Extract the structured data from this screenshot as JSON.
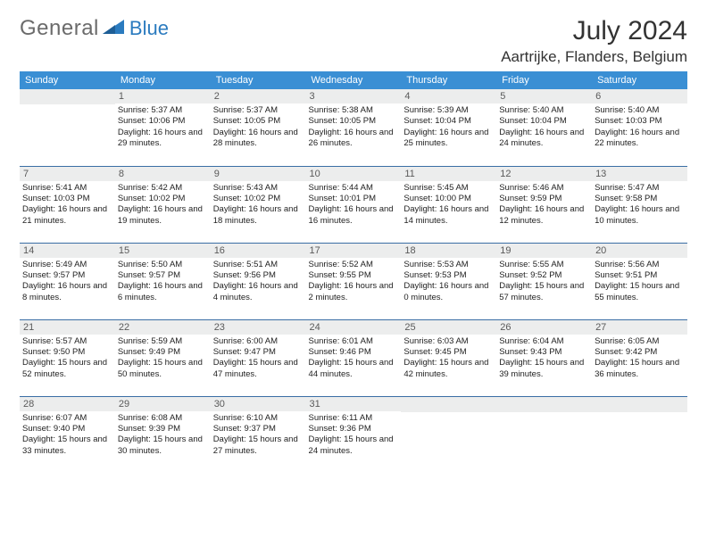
{
  "brand": {
    "text1": "General",
    "text2": "Blue",
    "accent_color": "#2b7bbf",
    "gray_color": "#6b6b6b"
  },
  "title": "July 2024",
  "location": "Aartrijke, Flanders, Belgium",
  "colors": {
    "header_bg": "#3a8fd4",
    "header_fg": "#ffffff",
    "daynum_bg": "#eceded",
    "daynum_fg": "#5a5a5a",
    "row_border": "#3a6ea5",
    "page_bg": "#ffffff"
  },
  "typography": {
    "title_fontsize": 30,
    "location_fontsize": 17,
    "weekday_fontsize": 11,
    "daynum_fontsize": 11,
    "cell_fontsize": 9.5
  },
  "weekdays": [
    "Sunday",
    "Monday",
    "Tuesday",
    "Wednesday",
    "Thursday",
    "Friday",
    "Saturday"
  ],
  "weeks": [
    [
      {
        "n": "",
        "sunrise": "",
        "sunset": "",
        "daylight": ""
      },
      {
        "n": "1",
        "sunrise": "Sunrise: 5:37 AM",
        "sunset": "Sunset: 10:06 PM",
        "daylight": "Daylight: 16 hours and 29 minutes."
      },
      {
        "n": "2",
        "sunrise": "Sunrise: 5:37 AM",
        "sunset": "Sunset: 10:05 PM",
        "daylight": "Daylight: 16 hours and 28 minutes."
      },
      {
        "n": "3",
        "sunrise": "Sunrise: 5:38 AM",
        "sunset": "Sunset: 10:05 PM",
        "daylight": "Daylight: 16 hours and 26 minutes."
      },
      {
        "n": "4",
        "sunrise": "Sunrise: 5:39 AM",
        "sunset": "Sunset: 10:04 PM",
        "daylight": "Daylight: 16 hours and 25 minutes."
      },
      {
        "n": "5",
        "sunrise": "Sunrise: 5:40 AM",
        "sunset": "Sunset: 10:04 PM",
        "daylight": "Daylight: 16 hours and 24 minutes."
      },
      {
        "n": "6",
        "sunrise": "Sunrise: 5:40 AM",
        "sunset": "Sunset: 10:03 PM",
        "daylight": "Daylight: 16 hours and 22 minutes."
      }
    ],
    [
      {
        "n": "7",
        "sunrise": "Sunrise: 5:41 AM",
        "sunset": "Sunset: 10:03 PM",
        "daylight": "Daylight: 16 hours and 21 minutes."
      },
      {
        "n": "8",
        "sunrise": "Sunrise: 5:42 AM",
        "sunset": "Sunset: 10:02 PM",
        "daylight": "Daylight: 16 hours and 19 minutes."
      },
      {
        "n": "9",
        "sunrise": "Sunrise: 5:43 AM",
        "sunset": "Sunset: 10:02 PM",
        "daylight": "Daylight: 16 hours and 18 minutes."
      },
      {
        "n": "10",
        "sunrise": "Sunrise: 5:44 AM",
        "sunset": "Sunset: 10:01 PM",
        "daylight": "Daylight: 16 hours and 16 minutes."
      },
      {
        "n": "11",
        "sunrise": "Sunrise: 5:45 AM",
        "sunset": "Sunset: 10:00 PM",
        "daylight": "Daylight: 16 hours and 14 minutes."
      },
      {
        "n": "12",
        "sunrise": "Sunrise: 5:46 AM",
        "sunset": "Sunset: 9:59 PM",
        "daylight": "Daylight: 16 hours and 12 minutes."
      },
      {
        "n": "13",
        "sunrise": "Sunrise: 5:47 AM",
        "sunset": "Sunset: 9:58 PM",
        "daylight": "Daylight: 16 hours and 10 minutes."
      }
    ],
    [
      {
        "n": "14",
        "sunrise": "Sunrise: 5:49 AM",
        "sunset": "Sunset: 9:57 PM",
        "daylight": "Daylight: 16 hours and 8 minutes."
      },
      {
        "n": "15",
        "sunrise": "Sunrise: 5:50 AM",
        "sunset": "Sunset: 9:57 PM",
        "daylight": "Daylight: 16 hours and 6 minutes."
      },
      {
        "n": "16",
        "sunrise": "Sunrise: 5:51 AM",
        "sunset": "Sunset: 9:56 PM",
        "daylight": "Daylight: 16 hours and 4 minutes."
      },
      {
        "n": "17",
        "sunrise": "Sunrise: 5:52 AM",
        "sunset": "Sunset: 9:55 PM",
        "daylight": "Daylight: 16 hours and 2 minutes."
      },
      {
        "n": "18",
        "sunrise": "Sunrise: 5:53 AM",
        "sunset": "Sunset: 9:53 PM",
        "daylight": "Daylight: 16 hours and 0 minutes."
      },
      {
        "n": "19",
        "sunrise": "Sunrise: 5:55 AM",
        "sunset": "Sunset: 9:52 PM",
        "daylight": "Daylight: 15 hours and 57 minutes."
      },
      {
        "n": "20",
        "sunrise": "Sunrise: 5:56 AM",
        "sunset": "Sunset: 9:51 PM",
        "daylight": "Daylight: 15 hours and 55 minutes."
      }
    ],
    [
      {
        "n": "21",
        "sunrise": "Sunrise: 5:57 AM",
        "sunset": "Sunset: 9:50 PM",
        "daylight": "Daylight: 15 hours and 52 minutes."
      },
      {
        "n": "22",
        "sunrise": "Sunrise: 5:59 AM",
        "sunset": "Sunset: 9:49 PM",
        "daylight": "Daylight: 15 hours and 50 minutes."
      },
      {
        "n": "23",
        "sunrise": "Sunrise: 6:00 AM",
        "sunset": "Sunset: 9:47 PM",
        "daylight": "Daylight: 15 hours and 47 minutes."
      },
      {
        "n": "24",
        "sunrise": "Sunrise: 6:01 AM",
        "sunset": "Sunset: 9:46 PM",
        "daylight": "Daylight: 15 hours and 44 minutes."
      },
      {
        "n": "25",
        "sunrise": "Sunrise: 6:03 AM",
        "sunset": "Sunset: 9:45 PM",
        "daylight": "Daylight: 15 hours and 42 minutes."
      },
      {
        "n": "26",
        "sunrise": "Sunrise: 6:04 AM",
        "sunset": "Sunset: 9:43 PM",
        "daylight": "Daylight: 15 hours and 39 minutes."
      },
      {
        "n": "27",
        "sunrise": "Sunrise: 6:05 AM",
        "sunset": "Sunset: 9:42 PM",
        "daylight": "Daylight: 15 hours and 36 minutes."
      }
    ],
    [
      {
        "n": "28",
        "sunrise": "Sunrise: 6:07 AM",
        "sunset": "Sunset: 9:40 PM",
        "daylight": "Daylight: 15 hours and 33 minutes."
      },
      {
        "n": "29",
        "sunrise": "Sunrise: 6:08 AM",
        "sunset": "Sunset: 9:39 PM",
        "daylight": "Daylight: 15 hours and 30 minutes."
      },
      {
        "n": "30",
        "sunrise": "Sunrise: 6:10 AM",
        "sunset": "Sunset: 9:37 PM",
        "daylight": "Daylight: 15 hours and 27 minutes."
      },
      {
        "n": "31",
        "sunrise": "Sunrise: 6:11 AM",
        "sunset": "Sunset: 9:36 PM",
        "daylight": "Daylight: 15 hours and 24 minutes."
      },
      {
        "n": "",
        "sunrise": "",
        "sunset": "",
        "daylight": ""
      },
      {
        "n": "",
        "sunrise": "",
        "sunset": "",
        "daylight": ""
      },
      {
        "n": "",
        "sunrise": "",
        "sunset": "",
        "daylight": ""
      }
    ]
  ]
}
